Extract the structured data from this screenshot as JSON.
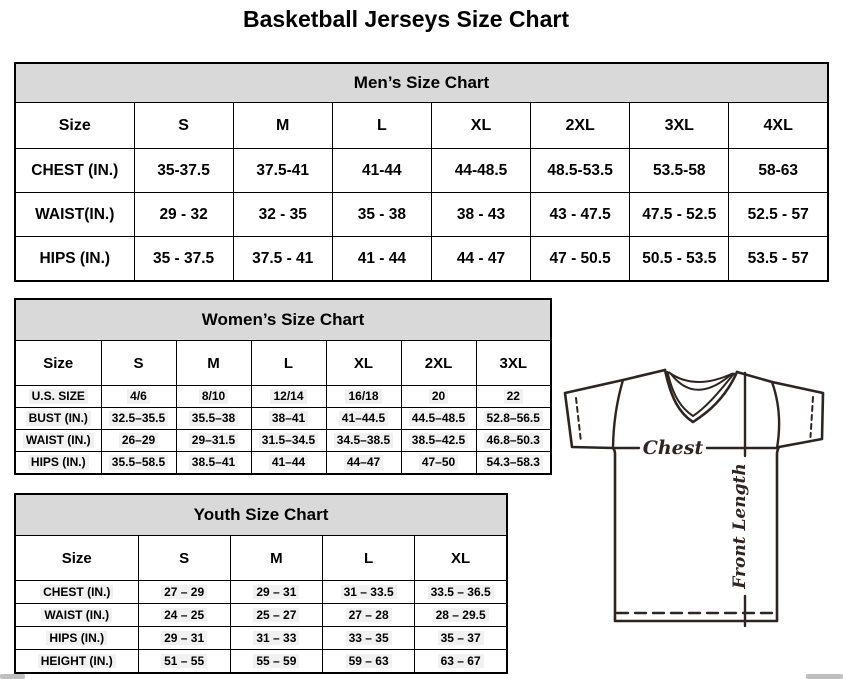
{
  "page_title": "Basketball Jerseys Size Chart",
  "mens_chart": {
    "title": "Men’s Size Chart",
    "columns": [
      "Size",
      "S",
      "M",
      "L",
      "XL",
      "2XL",
      "3XL",
      "4XL"
    ],
    "rows": [
      {
        "label": "CHEST (IN.)",
        "values": [
          "35-37.5",
          "37.5-41",
          "41-44",
          "44-48.5",
          "48.5-53.5",
          "53.5-58",
          "58-63"
        ]
      },
      {
        "label": "WAIST(IN.)",
        "values": [
          "29 - 32",
          "32 - 35",
          "35 - 38",
          "38 - 43",
          "43 - 47.5",
          "47.5 - 52.5",
          "52.5 - 57"
        ]
      },
      {
        "label": "HIPS (IN.)",
        "values": [
          "35 - 37.5",
          "37.5 - 41",
          "41 - 44",
          "44 - 47",
          "47 - 50.5",
          "50.5 - 53.5",
          "53.5 - 57"
        ]
      }
    ]
  },
  "womens_chart": {
    "title": "Women’s Size Chart",
    "columns": [
      "Size",
      "S",
      "M",
      "L",
      "XL",
      "2XL",
      "3XL"
    ],
    "rows": [
      {
        "label": "U.S. SIZE",
        "values": [
          "4/6",
          "8/10",
          "12/14",
          "16/18",
          "20",
          "22"
        ]
      },
      {
        "label": "BUST (IN.)",
        "values": [
          "32.5–35.5",
          "35.5–38",
          "38–41",
          "41–44.5",
          "44.5–48.5",
          "52.8–56.5"
        ]
      },
      {
        "label": "WAIST (IN.)",
        "values": [
          "26–29",
          "29–31.5",
          "31.5–34.5",
          "34.5–38.5",
          "38.5–42.5",
          "46.8–50.3"
        ]
      },
      {
        "label": "HIPS (IN.)",
        "values": [
          "35.5–58.5",
          "38.5–41",
          "41–44",
          "44–47",
          "47–50",
          "54.3–58.3"
        ]
      }
    ]
  },
  "youth_chart": {
    "title": "Youth Size Chart",
    "columns": [
      "Size",
      "S",
      "M",
      "L",
      "XL"
    ],
    "rows": [
      {
        "label": "CHEST (IN.)",
        "values": [
          "27 – 29",
          "29 – 31",
          "31 – 33.5",
          "33.5 – 36.5"
        ]
      },
      {
        "label": "WAIST (IN.)",
        "values": [
          "24 – 25",
          "25 – 27",
          "27 – 28",
          "28 – 29.5"
        ]
      },
      {
        "label": "HIPS (IN.)",
        "values": [
          "29 – 31",
          "31 – 33",
          "33 – 35",
          "35 – 37"
        ]
      },
      {
        "label": "HEIGHT (IN.)",
        "values": [
          "51 – 55",
          "55 – 59",
          "59 – 63",
          "63 – 67"
        ]
      }
    ]
  },
  "diagram": {
    "chest_label": "Chest",
    "front_length_label": "Front Length"
  },
  "colors": {
    "table_band_bg": "#d9d9d9",
    "table_border": "#000000",
    "diagram_stroke": "#2e2521",
    "scrollbar_thumb": "#bfbfbf"
  }
}
